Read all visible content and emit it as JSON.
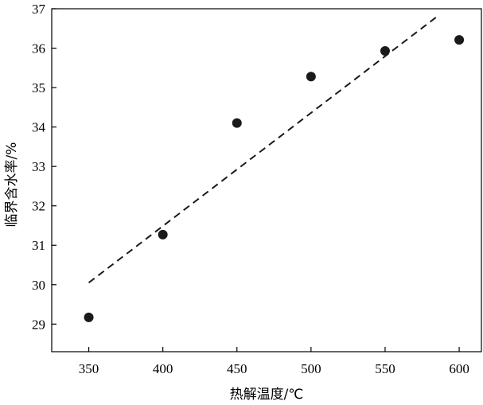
{
  "chart_data": {
    "type": "scatter",
    "title": "",
    "xlabel": "热解温度/℃",
    "ylabel": "临界含水率/%",
    "xlim": [
      325,
      615
    ],
    "ylim": [
      28.3,
      37
    ],
    "x_ticks": [
      350,
      400,
      450,
      500,
      550,
      600
    ],
    "y_ticks": [
      29,
      30,
      31,
      32,
      33,
      34,
      35,
      36,
      37
    ],
    "grid": false,
    "legend": "none",
    "series": [
      {
        "x": [
          350,
          400,
          450,
          500,
          550,
          600
        ],
        "y": [
          29.17,
          31.27,
          34.1,
          35.28,
          35.93,
          36.21
        ],
        "marker": "filled-circle",
        "color": "#1a1a1a"
      }
    ],
    "trendline": {
      "style": "dashed",
      "color": "#1a1a1a",
      "x": [
        350,
        585
      ],
      "y": [
        30.05,
        36.8
      ]
    }
  }
}
